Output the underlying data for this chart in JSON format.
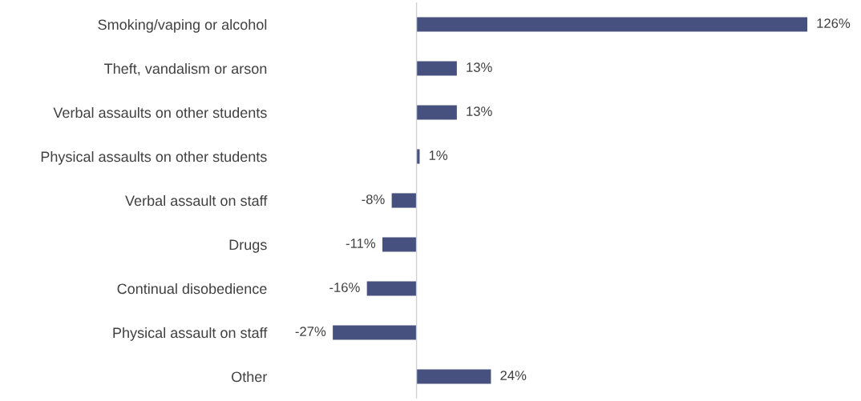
{
  "chart_data": {
    "type": "bar",
    "orientation": "horizontal",
    "data_labels": true,
    "color": "#46517f",
    "categories": [
      "Smoking/vaping or alcohol",
      "Theft, vandalism or arson",
      "Verbal assaults on other students",
      "Physical assaults on other students",
      "Verbal assault on staff",
      "Drugs",
      "Continual disobedience",
      "Physical assault on staff",
      "Other"
    ],
    "values": [
      126,
      13,
      13,
      1,
      -8,
      -11,
      -16,
      -27,
      24
    ],
    "value_labels": [
      "126%",
      "13%",
      "13%",
      "1%",
      "-8%",
      "-11%",
      "-16%",
      "-27%",
      "24%"
    ]
  }
}
